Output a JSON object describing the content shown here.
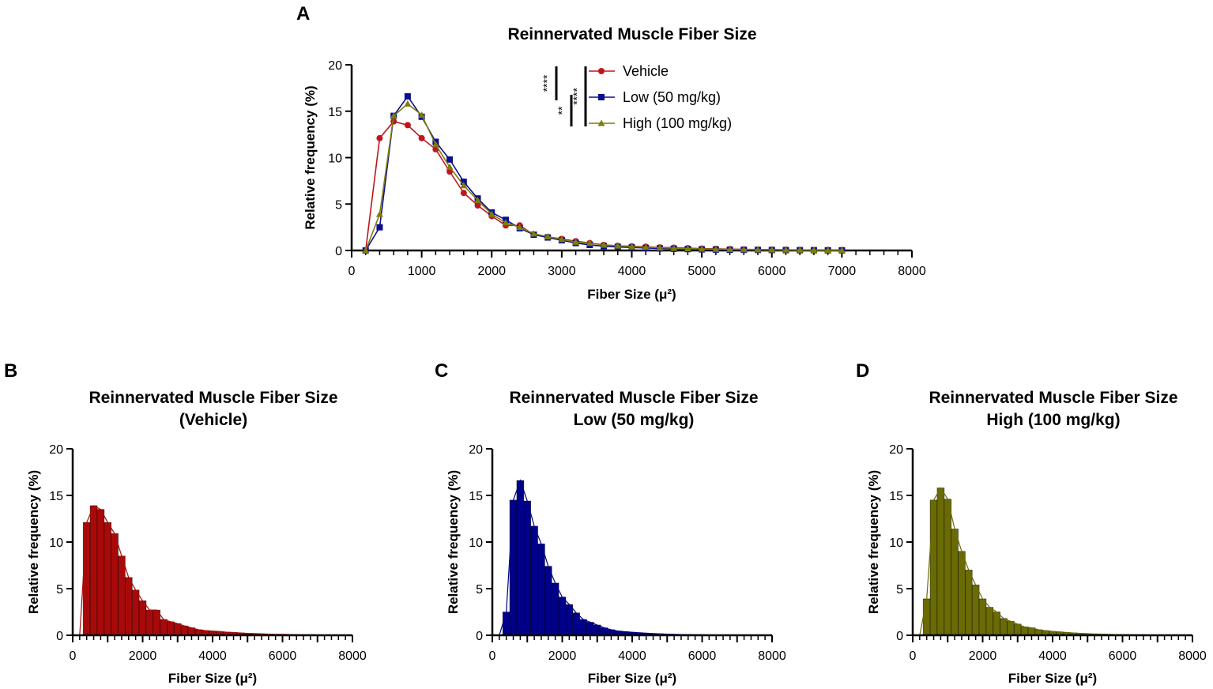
{
  "chart_data": [
    {
      "panel": "A",
      "type": "line",
      "title": "Reinnervated Muscle Fiber Size",
      "xlabel": "Fiber Size (μ²)",
      "ylabel": "Relative frequency (%)",
      "xlim": [
        0,
        8000
      ],
      "ylim": [
        0,
        20
      ],
      "xticks": [
        0,
        1000,
        2000,
        3000,
        4000,
        5000,
        6000,
        7000,
        8000
      ],
      "yticks": [
        0,
        5,
        10,
        15,
        20
      ],
      "legend_position": "top-center",
      "significance": [
        {
          "label": "****",
          "between": "Vehicle vs Low"
        },
        {
          "label": "**",
          "between": "Low vs High"
        },
        {
          "label": "****",
          "between": "Vehicle vs High"
        }
      ],
      "x": [
        200,
        400,
        600,
        800,
        1000,
        1200,
        1400,
        1600,
        1800,
        2000,
        2200,
        2400,
        2600,
        2800,
        3000,
        3200,
        3400,
        3600,
        3800,
        4000,
        4200,
        4400,
        4600,
        4800,
        5000,
        5200,
        5400,
        5600,
        5800,
        6000,
        6200,
        6400,
        6600,
        6800,
        7000
      ],
      "series": [
        {
          "name": "Vehicle",
          "color": "#c0151d",
          "marker": "circle",
          "values": [
            0,
            12.1,
            13.9,
            13.5,
            12.1,
            10.9,
            8.5,
            6.2,
            4.85,
            3.7,
            2.7,
            2.7,
            1.7,
            1.45,
            1.25,
            1.0,
            0.8,
            0.6,
            0.5,
            0.45,
            0.4,
            0.33,
            0.3,
            0.25,
            0.2,
            0.18,
            0.15,
            0.12,
            0.1,
            0.1,
            0.08,
            0.06,
            0.05,
            0.05,
            0.04
          ]
        },
        {
          "name": "Low (50 mg/kg)",
          "color": "#0d0d8f",
          "marker": "square",
          "values": [
            0,
            2.5,
            14.5,
            16.6,
            14.4,
            11.7,
            9.8,
            7.4,
            5.6,
            4.1,
            3.3,
            2.4,
            1.7,
            1.4,
            1.1,
            0.8,
            0.6,
            0.45,
            0.38,
            0.32,
            0.27,
            0.22,
            0.18,
            0.15,
            0.12,
            0.1,
            0.08,
            0.07,
            0.06,
            0.05,
            0.04,
            0.03,
            0.03,
            0.02,
            0.02
          ]
        },
        {
          "name": "High (100 mg/kg)",
          "color": "#7d7d0c",
          "marker": "triangle",
          "values": [
            0,
            3.9,
            14.5,
            15.8,
            14.6,
            11.4,
            9.0,
            7.0,
            5.4,
            3.9,
            3.0,
            2.5,
            1.8,
            1.5,
            1.2,
            0.9,
            0.8,
            0.6,
            0.5,
            0.42,
            0.36,
            0.3,
            0.25,
            0.2,
            0.17,
            0.14,
            0.12,
            0.1,
            0.08,
            0.07,
            0.06,
            0.05,
            0.04,
            0.03,
            0.03
          ]
        }
      ]
    },
    {
      "panel": "B",
      "type": "bar",
      "title": "Reinnervated Muscle Fiber Size",
      "subtitle": "(Vehicle)",
      "series_ref": 0,
      "fill": "#a80a0a",
      "xlabel": "Fiber Size (μ²)",
      "ylabel": "Relative frequency (%)",
      "xlim": [
        0,
        8000
      ],
      "ylim": [
        0,
        20
      ],
      "xticks": [
        0,
        2000,
        4000,
        6000,
        8000
      ],
      "yticks": [
        0,
        5,
        10,
        15,
        20
      ]
    },
    {
      "panel": "C",
      "type": "bar",
      "title": "Reinnervated Muscle Fiber Size",
      "subtitle": "Low (50 mg/kg)",
      "series_ref": 1,
      "fill": "#00008a",
      "xlabel": "Fiber Size (μ²)",
      "ylabel": "Relative frequency (%)",
      "xlim": [
        0,
        8000
      ],
      "ylim": [
        0,
        20
      ],
      "xticks": [
        0,
        2000,
        4000,
        6000,
        8000
      ],
      "yticks": [
        0,
        5,
        10,
        15,
        20
      ]
    },
    {
      "panel": "D",
      "type": "bar",
      "title": "Reinnervated Muscle Fiber Size",
      "subtitle": "High (100 mg/kg)",
      "series_ref": 2,
      "fill": "#6b6b05",
      "xlabel": "Fiber Size (μ²)",
      "ylabel": "Relative frequency (%)",
      "xlim": [
        0,
        8000
      ],
      "ylim": [
        0,
        20
      ],
      "xticks": [
        0,
        2000,
        4000,
        6000,
        8000
      ],
      "yticks": [
        0,
        5,
        10,
        15,
        20
      ]
    }
  ]
}
